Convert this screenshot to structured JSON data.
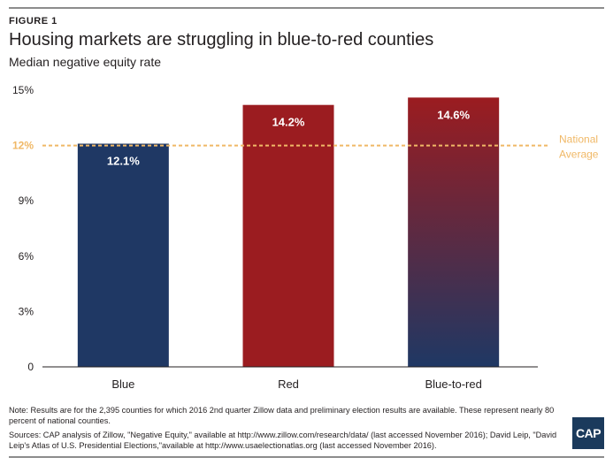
{
  "figure_label": "FIGURE 1",
  "chart_data": {
    "type": "bar",
    "title": "Housing markets are struggling in blue-to-red counties",
    "subtitle": "Median negative equity rate",
    "categories": [
      "Blue",
      "Red",
      "Blue-to-red"
    ],
    "values": [
      12.1,
      14.2,
      14.6
    ],
    "value_labels": [
      "12.1%",
      "14.2%",
      "14.6%"
    ],
    "ylim": [
      0,
      15
    ],
    "yticks": [
      0,
      3,
      6,
      9,
      12,
      15
    ],
    "ytick_labels": [
      "0",
      "3%",
      "6%",
      "9%",
      "12%",
      "15%"
    ],
    "reference_line": {
      "value": 12,
      "label_lines": [
        "National",
        "Average"
      ],
      "color": "#f0b866"
    },
    "bar_colors": [
      "#1f3864",
      "#9b1c20",
      "gradient"
    ],
    "gradient_colors": [
      "#9b1c20",
      "#1f3864"
    ],
    "grid": false
  },
  "notes": {
    "note": "Note: Results are for the 2,395 counties for which 2016 2nd quarter Zillow data and preliminary election results are available. These represent nearly 80 percent of national counties.",
    "sources": "Sources: CAP analysis of Zillow, \"Negative Equity,\" available at http://www.zillow.com/research/data/ (last accessed November 2016); David Leip, \"David Leip's Atlas of U.S. Presidential Elections,\"available at http://www.usaelectionatlas.org (last accessed November 2016)."
  },
  "logo_text": "CAP"
}
